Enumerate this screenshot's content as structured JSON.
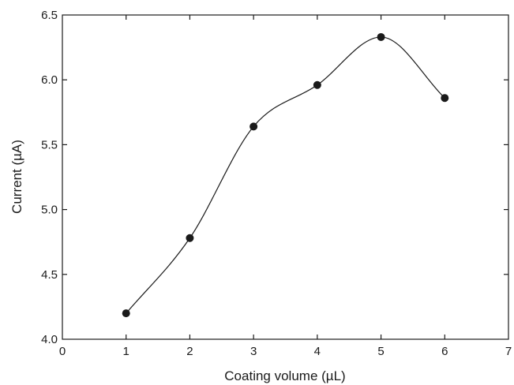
{
  "chart_data": {
    "type": "line",
    "xlabel": "Coating volume (µL)",
    "ylabel": "Current (µA)",
    "xlim": [
      0,
      7
    ],
    "ylim": [
      4.0,
      6.5
    ],
    "xticks": [
      0,
      1,
      2,
      3,
      4,
      5,
      6,
      7
    ],
    "yticks": [
      4.0,
      4.5,
      5.0,
      5.5,
      6.0,
      6.5
    ],
    "x_tick_labels": [
      "0",
      "1",
      "2",
      "3",
      "4",
      "5",
      "6",
      "7"
    ],
    "y_tick_labels": [
      "4.0",
      "4.5",
      "5.0",
      "5.5",
      "6.0",
      "6.5"
    ],
    "grid": false,
    "smooth_line": true,
    "series": [
      {
        "x": [
          1,
          2,
          3,
          4,
          5,
          6
        ],
        "y": [
          4.2,
          4.78,
          5.64,
          5.96,
          6.33,
          5.86
        ],
        "marker": "filled-circle",
        "color": "#1a1a1a"
      }
    ]
  }
}
